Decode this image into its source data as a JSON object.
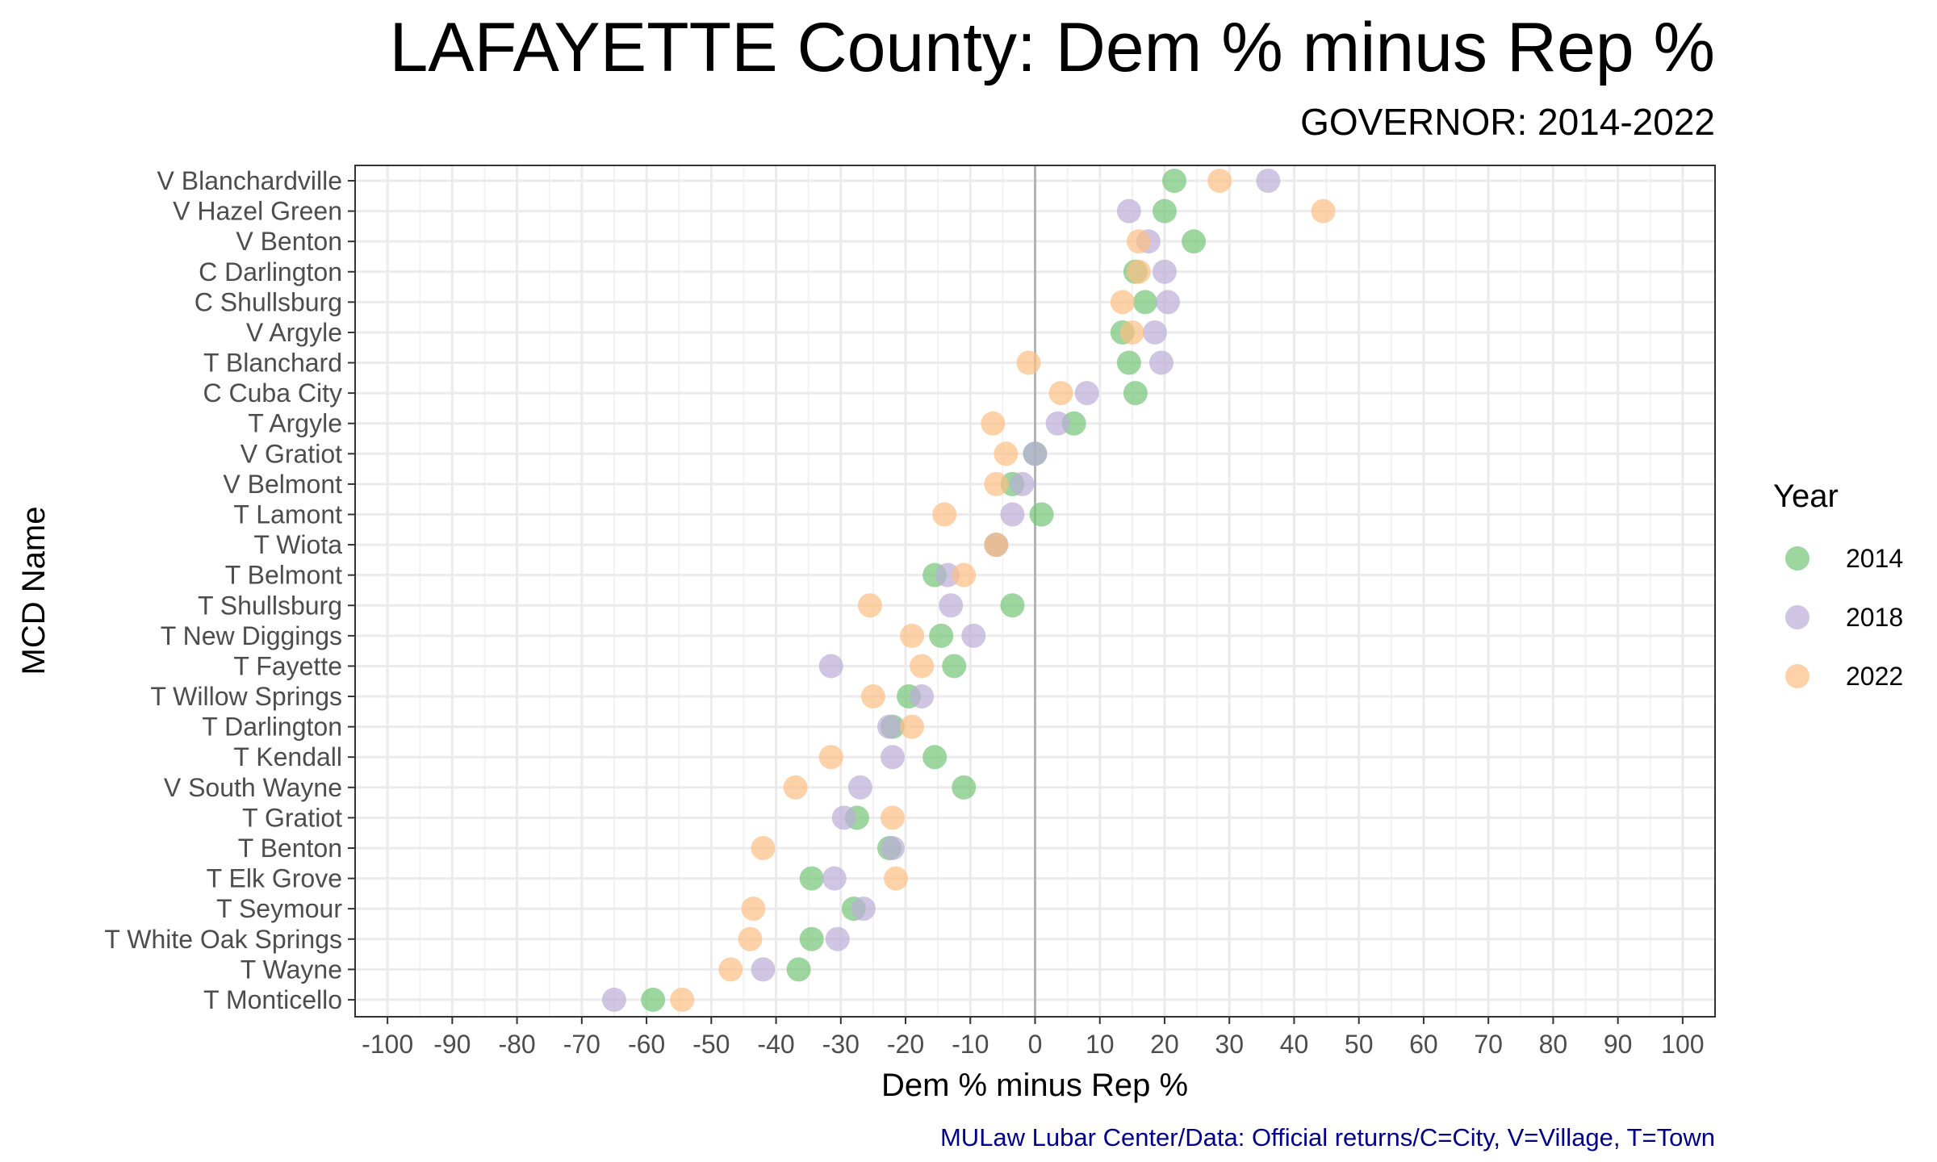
{
  "chart_data": {
    "type": "scatter",
    "title": "LAFAYETTE County: Dem % minus Rep %",
    "subtitle": "GOVERNOR: 2014-2022",
    "xlabel": "Dem % minus Rep %",
    "ylabel": "MCD Name",
    "caption": "MULaw Lubar Center/Data: Official returns/C=City, V=Village, T=Town",
    "xlim": [
      -105,
      105
    ],
    "x_ticks": [
      -100,
      -90,
      -80,
      -70,
      -60,
      -50,
      -40,
      -30,
      -20,
      -10,
      0,
      10,
      20,
      30,
      40,
      50,
      60,
      70,
      80,
      90,
      100
    ],
    "grid": true,
    "reference_line_x": 0,
    "legend": {
      "title": "Year",
      "position": "right"
    },
    "categories": [
      "V Blanchardville",
      "V Hazel Green",
      "V Benton",
      "C Darlington",
      "C Shullsburg",
      "V Argyle",
      "T Blanchard",
      "C Cuba City",
      "T Argyle",
      "V Gratiot",
      "V Belmont",
      "T Lamont",
      "T Wiota",
      "T Belmont",
      "T Shullsburg",
      "T New Diggings",
      "T Fayette",
      "T Willow Springs",
      "T Darlington",
      "T Kendall",
      "V South Wayne",
      "T Gratiot",
      "T Benton",
      "T Elk Grove",
      "T Seymour",
      "T White Oak Springs",
      "T Wayne",
      "T Monticello"
    ],
    "series": [
      {
        "name": "2014",
        "color": "#74c476",
        "values": [
          21.5,
          20,
          24.5,
          15.5,
          17,
          13.5,
          14.5,
          15.5,
          6,
          0,
          -3.5,
          1,
          -6,
          -15.5,
          -3.5,
          -14.5,
          -12.5,
          -19.5,
          -22,
          -15.5,
          -11,
          -27.5,
          -22.5,
          -34.5,
          -28,
          -34.5,
          -36.5,
          -59
        ]
      },
      {
        "name": "2018",
        "color": "#bcaed8",
        "values": [
          36,
          14.5,
          17.5,
          20,
          20.5,
          18.5,
          19.5,
          8,
          3.5,
          0,
          -2,
          -3.5,
          -6,
          -13.5,
          -13,
          -9.5,
          -31.5,
          -17.5,
          -22.5,
          -22,
          -27,
          -29.5,
          -22,
          -31,
          -26.5,
          -30.5,
          -42,
          -65
        ]
      },
      {
        "name": "2022",
        "color": "#fdbf85",
        "values": [
          28.5,
          44.5,
          16,
          16,
          13.5,
          15,
          -1,
          4,
          -6.5,
          -4.5,
          -6,
          -14,
          -6,
          -11,
          -25.5,
          -19,
          -17.5,
          -25,
          -19,
          -31.5,
          -37,
          -22,
          -42,
          -21.5,
          -43.5,
          -44,
          -47,
          -54.5
        ]
      }
    ]
  }
}
